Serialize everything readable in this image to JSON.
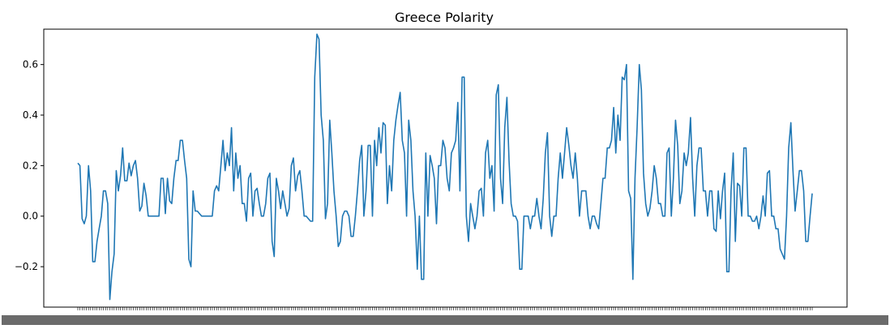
{
  "chart_data": {
    "type": "line",
    "title": "Greece Polarity",
    "xlabel": "",
    "ylabel": "",
    "grid": false,
    "legend": "none",
    "ylim": [
      -0.36,
      0.74
    ],
    "yticks": [
      -0.2,
      0.0,
      0.2,
      0.4,
      0.6
    ],
    "ytick_labels": [
      "−0.2",
      "0.0",
      "0.2",
      "0.4",
      "0.6"
    ],
    "series": [
      {
        "color": "#1f77b4",
        "values": [
          0.21,
          0.2,
          -0.01,
          -0.03,
          0.0,
          0.2,
          0.1,
          -0.18,
          -0.18,
          -0.1,
          -0.05,
          0.0,
          0.1,
          0.1,
          0.05,
          -0.33,
          -0.22,
          -0.15,
          0.18,
          0.1,
          0.16,
          0.27,
          0.14,
          0.14,
          0.21,
          0.16,
          0.2,
          0.22,
          0.15,
          0.02,
          0.04,
          0.13,
          0.08,
          0.0,
          0.0,
          0.0,
          0.0,
          0.0,
          0.0,
          0.15,
          0.15,
          0.01,
          0.15,
          0.06,
          0.05,
          0.15,
          0.22,
          0.22,
          0.3,
          0.3,
          0.22,
          0.15,
          -0.17,
          -0.2,
          0.1,
          0.02,
          0.02,
          0.01,
          0.0,
          0.0,
          0.0,
          0.0,
          0.0,
          0.0,
          0.1,
          0.12,
          0.1,
          0.2,
          0.3,
          0.18,
          0.25,
          0.2,
          0.35,
          0.1,
          0.25,
          0.15,
          0.2,
          0.05,
          0.05,
          -0.02,
          0.15,
          0.17,
          0.0,
          0.1,
          0.11,
          0.05,
          0.0,
          0.0,
          0.05,
          0.15,
          0.17,
          -0.1,
          -0.16,
          0.15,
          0.1,
          0.03,
          0.1,
          0.05,
          0.0,
          0.03,
          0.2,
          0.23,
          0.1,
          0.16,
          0.18,
          0.1,
          0.0,
          0.0,
          -0.01,
          -0.02,
          -0.02,
          0.55,
          0.72,
          0.7,
          0.4,
          0.3,
          -0.01,
          0.05,
          0.38,
          0.25,
          0.1,
          0.0,
          -0.12,
          -0.1,
          0.0,
          0.02,
          0.02,
          0.0,
          -0.08,
          -0.08,
          0.0,
          0.1,
          0.22,
          0.28,
          0.0,
          0.1,
          0.28,
          0.28,
          0.0,
          0.3,
          0.2,
          0.35,
          0.25,
          0.37,
          0.36,
          0.05,
          0.2,
          0.1,
          0.3,
          0.38,
          0.44,
          0.49,
          0.3,
          0.25,
          0.0,
          0.38,
          0.3,
          0.1,
          0.0,
          -0.21,
          0.0,
          -0.25,
          -0.25,
          0.25,
          0.0,
          0.24,
          0.2,
          0.15,
          -0.03,
          0.2,
          0.2,
          0.3,
          0.27,
          0.15,
          0.1,
          0.25,
          0.27,
          0.3,
          0.45,
          0.1,
          0.55,
          0.55,
          0.0,
          -0.1,
          0.05,
          0.0,
          -0.05,
          0.0,
          0.1,
          0.11,
          0.0,
          0.25,
          0.3,
          0.15,
          0.2,
          0.02,
          0.48,
          0.52,
          0.15,
          0.05,
          0.35,
          0.47,
          0.22,
          0.05,
          0.0,
          0.0,
          -0.02,
          -0.21,
          -0.21,
          0.0,
          0.0,
          0.0,
          -0.05,
          0.0,
          0.0,
          0.07,
          0.0,
          -0.05,
          0.07,
          0.25,
          0.33,
          0.0,
          -0.08,
          0.0,
          0.0,
          0.15,
          0.25,
          0.15,
          0.25,
          0.35,
          0.28,
          0.2,
          0.15,
          0.25,
          0.15,
          0.0,
          0.1,
          0.1,
          0.1,
          0.0,
          -0.05,
          0.0,
          0.0,
          -0.03,
          -0.05,
          0.05,
          0.15,
          0.15,
          0.27,
          0.27,
          0.3,
          0.43,
          0.25,
          0.4,
          0.3,
          0.55,
          0.54,
          0.6,
          0.1,
          0.07,
          -0.25,
          0.15,
          0.35,
          0.6,
          0.5,
          0.17,
          0.05,
          0.0,
          0.03,
          0.1,
          0.2,
          0.15,
          0.05,
          0.05,
          0.0,
          0.0,
          0.25,
          0.27,
          0.0,
          0.15,
          0.38,
          0.28,
          0.05,
          0.1,
          0.25,
          0.2,
          0.25,
          0.39,
          0.15,
          0.0,
          0.2,
          0.27,
          0.27,
          0.1,
          0.1,
          0.0,
          0.1,
          0.1,
          -0.05,
          -0.06,
          0.1,
          -0.01,
          0.1,
          0.17,
          -0.22,
          -0.22,
          0.1,
          0.25,
          -0.1,
          0.13,
          0.12,
          0.0,
          0.27,
          0.27,
          0.0,
          0.0,
          -0.02,
          -0.02,
          0.0,
          -0.05,
          0.0,
          0.08,
          0.0,
          0.17,
          0.18,
          0.0,
          0.0,
          -0.05,
          -0.05,
          -0.13,
          -0.15,
          -0.17,
          0.0,
          0.27,
          0.37,
          0.18,
          0.02,
          0.1,
          0.18,
          0.18,
          0.1,
          -0.1,
          -0.1,
          0.0,
          0.09
        ]
      }
    ]
  }
}
